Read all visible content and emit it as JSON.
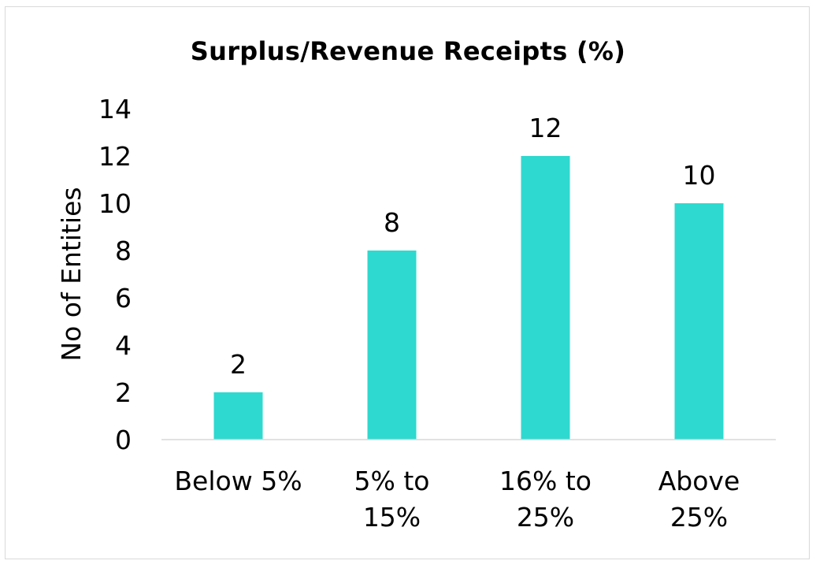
{
  "chart_data": {
    "type": "bar",
    "title": "Surplus/Revenue Receipts (%)",
    "ylabel": "No of Entities",
    "xlabel": "",
    "categories": [
      [
        "Below 5%"
      ],
      [
        "5% to",
        "15%"
      ],
      [
        "16% to",
        "25%"
      ],
      [
        "Above",
        "25%"
      ]
    ],
    "values": [
      2,
      8,
      12,
      10
    ],
    "ylim": [
      0,
      14
    ],
    "yticks": [
      0,
      2,
      4,
      6,
      8,
      10,
      12,
      14
    ],
    "grid": false,
    "data_labels": true,
    "bar_color": "#2ED9CF"
  }
}
